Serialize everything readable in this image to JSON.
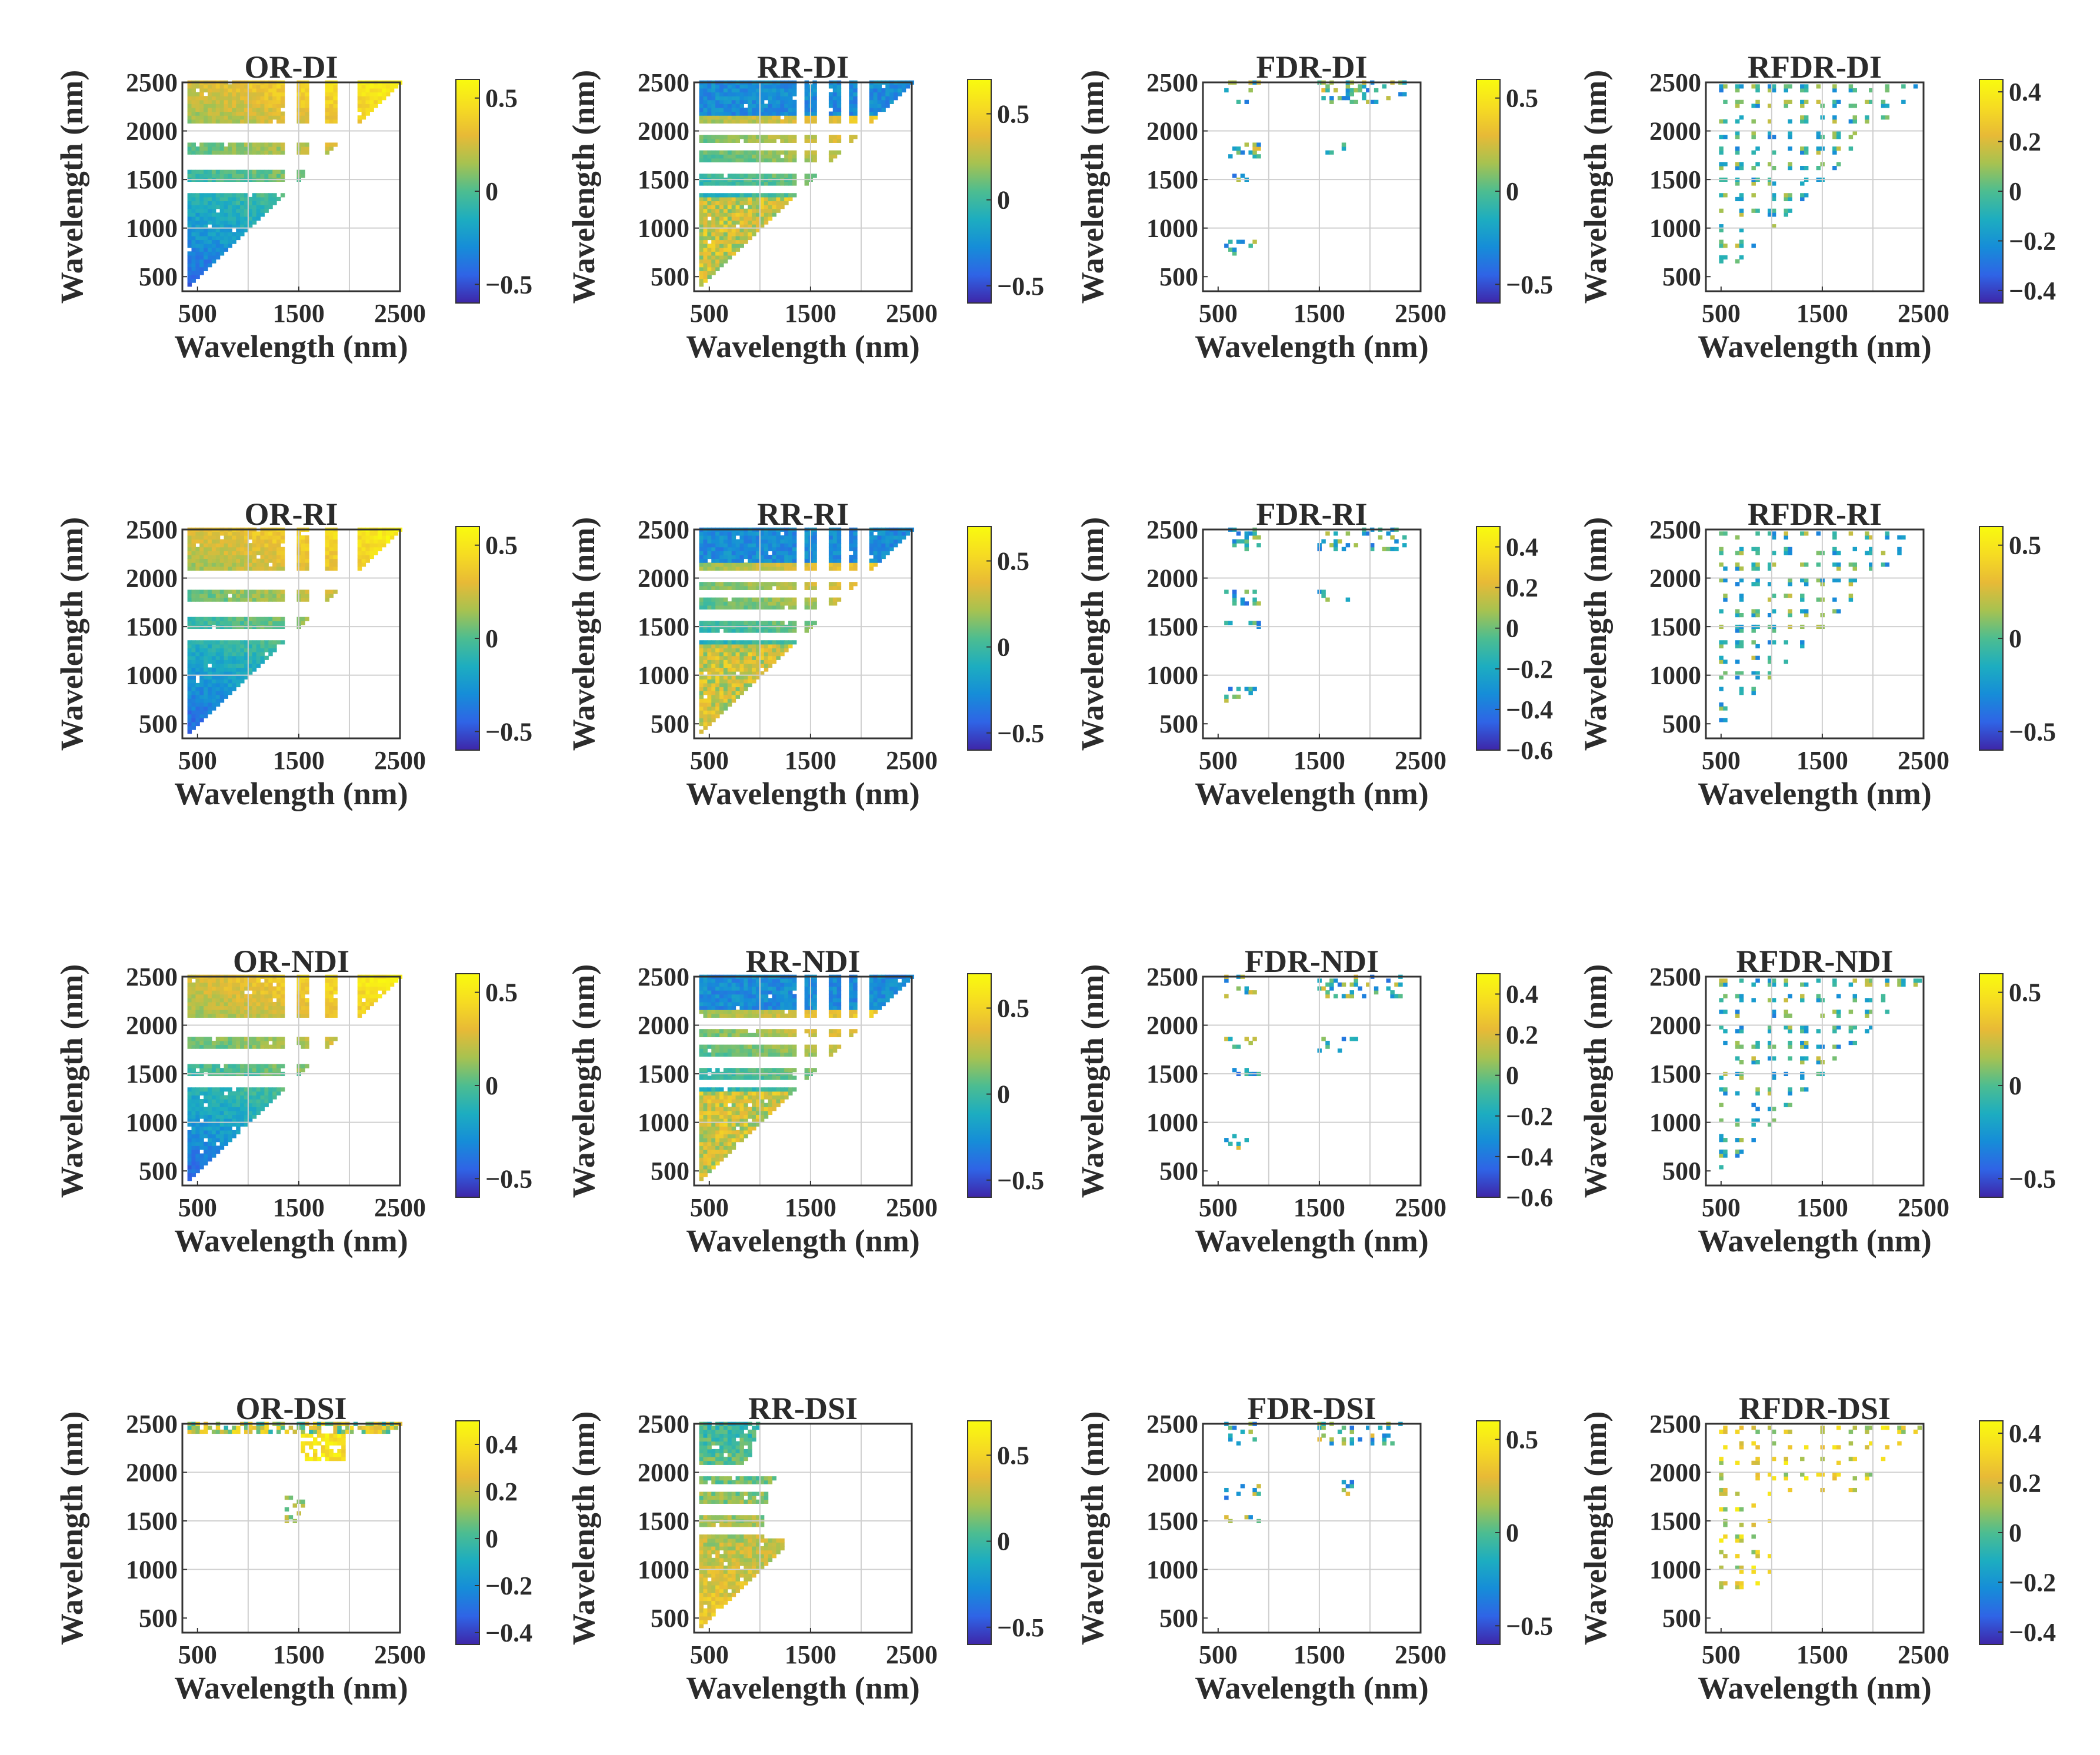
{
  "figure": {
    "colormap": [
      "#3e26a8",
      "#2f64e6",
      "#168dd8",
      "#1dadc0",
      "#4dbd90",
      "#a7c250",
      "#e8ba36",
      "#f6dc22",
      "#f9fb0e"
    ],
    "panel_background": "#ffffff",
    "grid": true
  },
  "chart_data": [
    {
      "type": "heatmap",
      "title": "OR-DI",
      "xlabel": "Wavelength (nm)",
      "ylabel": "Wavelength (nm)",
      "xlim": [
        350,
        2500
      ],
      "ylim": [
        350,
        2500
      ],
      "xticks": [
        "500",
        "1500",
        "2500"
      ],
      "yticks": [
        "500",
        "1000",
        "1500",
        "2000",
        "2500"
      ],
      "colorbar": {
        "ticks": [
          "0.5",
          "0",
          "−0.5"
        ],
        "range": [
          -0.6,
          0.6
        ]
      },
      "pattern": "dense",
      "gaps": [
        [
          1330,
          1460
        ],
        [
          1580,
          1730
        ],
        [
          1860,
          2050
        ]
      ],
      "xgaps": [
        [
          1330,
          1460
        ],
        [
          1580,
          1730
        ],
        [
          1860,
          2050
        ]
      ],
      "value_range": [
        -0.6,
        0.6
      ],
      "density": 0.98,
      "mean": 0.05
    },
    {
      "type": "heatmap",
      "title": "RR-DI",
      "xlabel": "Wavelength (nm)",
      "ylabel": "Wavelength (nm)",
      "xlim": [
        350,
        2500
      ],
      "ylim": [
        350,
        2500
      ],
      "xticks": [
        "500",
        "1500",
        "2500"
      ],
      "yticks": [
        "500",
        "1000",
        "1500",
        "2000",
        "2500"
      ],
      "colorbar": {
        "ticks": [
          "0.5",
          "0",
          "−0.5"
        ],
        "range": [
          -0.6,
          0.7
        ]
      },
      "pattern": "dense",
      "gaps": [
        [
          1330,
          1420
        ],
        [
          1560,
          1640
        ],
        [
          1780,
          1860
        ],
        [
          1960,
          2060
        ]
      ],
      "xgaps": [
        [
          1330,
          1420
        ],
        [
          1560,
          1640
        ],
        [
          1780,
          1860
        ],
        [
          1960,
          2060
        ]
      ],
      "value_range": [
        -0.6,
        0.7
      ],
      "density": 0.98,
      "mean": 0.05
    },
    {
      "type": "heatmap",
      "title": "FDR-DI",
      "xlabel": "Wavelength (nm)",
      "ylabel": "Wavelength (nm)",
      "xlim": [
        350,
        2500
      ],
      "ylim": [
        350,
        2500
      ],
      "xticks": [
        "500",
        "1500",
        "2500"
      ],
      "yticks": [
        "500",
        "1000",
        "1500",
        "2000",
        "2500"
      ],
      "colorbar": {
        "ticks": [
          "0.5",
          "0",
          "−0.5"
        ],
        "range": [
          -0.6,
          0.6
        ]
      },
      "pattern": "sparse",
      "gaps": [],
      "xgaps": [],
      "value_range": [
        -0.6,
        0.6
      ],
      "density": 0.25,
      "mean": 0.0
    },
    {
      "type": "heatmap",
      "title": "RFDR-DI",
      "xlabel": "Wavelength (nm)",
      "ylabel": "Wavelength (nm)",
      "xlim": [
        350,
        2500
      ],
      "ylim": [
        350,
        2500
      ],
      "xticks": [
        "500",
        "1500",
        "2500"
      ],
      "yticks": [
        "500",
        "1000",
        "1500",
        "2000",
        "2500"
      ],
      "colorbar": {
        "ticks": [
          "0.4",
          "0.2",
          "0",
          "−0.2",
          "−0.4"
        ],
        "range": [
          -0.45,
          0.45
        ]
      },
      "pattern": "grid",
      "gaps": [],
      "xgaps": [],
      "value_range": [
        -0.45,
        0.45
      ],
      "density": 0.55,
      "mean": 0.0
    },
    {
      "type": "heatmap",
      "title": "OR-RI",
      "xlabel": "Wavelength (nm)",
      "ylabel": "Wavelength (nm)",
      "xlim": [
        350,
        2500
      ],
      "ylim": [
        350,
        2500
      ],
      "xticks": [
        "500",
        "1500",
        "2500"
      ],
      "yticks": [
        "500",
        "1000",
        "1500",
        "2000",
        "2500"
      ],
      "colorbar": {
        "ticks": [
          "0.5",
          "0",
          "−0.5"
        ],
        "range": [
          -0.6,
          0.6
        ]
      },
      "pattern": "dense",
      "gaps": [
        [
          1330,
          1460
        ],
        [
          1580,
          1730
        ],
        [
          1860,
          2050
        ]
      ],
      "xgaps": [
        [
          1330,
          1460
        ],
        [
          1580,
          1730
        ],
        [
          1860,
          2050
        ]
      ],
      "value_range": [
        -0.6,
        0.6
      ],
      "density": 0.98,
      "mean": 0.0
    },
    {
      "type": "heatmap",
      "title": "RR-RI",
      "xlabel": "Wavelength (nm)",
      "ylabel": "Wavelength (nm)",
      "xlim": [
        350,
        2500
      ],
      "ylim": [
        350,
        2500
      ],
      "xticks": [
        "500",
        "1500",
        "2500"
      ],
      "yticks": [
        "500",
        "1000",
        "1500",
        "2000",
        "2500"
      ],
      "colorbar": {
        "ticks": [
          "0.5",
          "0",
          "−0.5"
        ],
        "range": [
          -0.6,
          0.7
        ]
      },
      "pattern": "dense",
      "gaps": [
        [
          1330,
          1420
        ],
        [
          1560,
          1640
        ],
        [
          1780,
          1860
        ],
        [
          1960,
          2060
        ]
      ],
      "xgaps": [
        [
          1330,
          1420
        ],
        [
          1560,
          1640
        ],
        [
          1780,
          1860
        ],
        [
          1960,
          2060
        ]
      ],
      "value_range": [
        -0.6,
        0.7
      ],
      "density": 0.98,
      "mean": 0.1
    },
    {
      "type": "heatmap",
      "title": "FDR-RI",
      "xlabel": "Wavelength (nm)",
      "ylabel": "Wavelength (nm)",
      "xlim": [
        350,
        2500
      ],
      "ylim": [
        350,
        2500
      ],
      "xticks": [
        "500",
        "1500",
        "2500"
      ],
      "yticks": [
        "500",
        "1000",
        "1500",
        "2000",
        "2500"
      ],
      "colorbar": {
        "ticks": [
          "0.4",
          "0.2",
          "0",
          "−0.2",
          "−0.4",
          "−0.6"
        ],
        "range": [
          -0.6,
          0.5
        ]
      },
      "pattern": "sparse",
      "gaps": [],
      "xgaps": [],
      "value_range": [
        -0.6,
        0.5
      ],
      "density": 0.25,
      "mean": 0.0
    },
    {
      "type": "heatmap",
      "title": "RFDR-RI",
      "xlabel": "Wavelength (nm)",
      "ylabel": "Wavelength (nm)",
      "xlim": [
        350,
        2500
      ],
      "ylim": [
        350,
        2500
      ],
      "xticks": [
        "500",
        "1500",
        "2500"
      ],
      "yticks": [
        "500",
        "1000",
        "1500",
        "2000",
        "2500"
      ],
      "colorbar": {
        "ticks": [
          "0.5",
          "0",
          "−0.5"
        ],
        "range": [
          -0.6,
          0.6
        ]
      },
      "pattern": "grid",
      "gaps": [],
      "xgaps": [],
      "value_range": [
        -0.6,
        0.6
      ],
      "density": 0.55,
      "mean": 0.0
    },
    {
      "type": "heatmap",
      "title": "OR-NDI",
      "xlabel": "Wavelength (nm)",
      "ylabel": "Wavelength (nm)",
      "xlim": [
        350,
        2500
      ],
      "ylim": [
        350,
        2500
      ],
      "xticks": [
        "500",
        "1500",
        "2500"
      ],
      "yticks": [
        "500",
        "1000",
        "1500",
        "2000",
        "2500"
      ],
      "colorbar": {
        "ticks": [
          "0.5",
          "0",
          "−0.5"
        ],
        "range": [
          -0.6,
          0.6
        ]
      },
      "pattern": "dense",
      "gaps": [
        [
          1330,
          1460
        ],
        [
          1580,
          1730
        ],
        [
          1860,
          2050
        ]
      ],
      "xgaps": [
        [
          1330,
          1460
        ],
        [
          1580,
          1730
        ],
        [
          1860,
          2050
        ]
      ],
      "value_range": [
        -0.6,
        0.6
      ],
      "density": 0.98,
      "mean": 0.0
    },
    {
      "type": "heatmap",
      "title": "RR-NDI",
      "xlabel": "Wavelength (nm)",
      "ylabel": "Wavelength (nm)",
      "xlim": [
        350,
        2500
      ],
      "ylim": [
        350,
        2500
      ],
      "xticks": [
        "500",
        "1500",
        "2500"
      ],
      "yticks": [
        "500",
        "1000",
        "1500",
        "2000",
        "2500"
      ],
      "colorbar": {
        "ticks": [
          "0.5",
          "0",
          "−0.5"
        ],
        "range": [
          -0.6,
          0.7
        ]
      },
      "pattern": "dense",
      "gaps": [
        [
          1330,
          1420
        ],
        [
          1560,
          1640
        ],
        [
          1780,
          1860
        ],
        [
          1960,
          2060
        ]
      ],
      "xgaps": [
        [
          1330,
          1420
        ],
        [
          1560,
          1640
        ],
        [
          1780,
          1860
        ],
        [
          1960,
          2060
        ]
      ],
      "value_range": [
        -0.6,
        0.7
      ],
      "density": 0.98,
      "mean": 0.1
    },
    {
      "type": "heatmap",
      "title": "FDR-NDI",
      "xlabel": "Wavelength (nm)",
      "ylabel": "Wavelength (nm)",
      "xlim": [
        350,
        2500
      ],
      "ylim": [
        350,
        2500
      ],
      "xticks": [
        "500",
        "1500",
        "2500"
      ],
      "yticks": [
        "500",
        "1000",
        "1500",
        "2000",
        "2500"
      ],
      "colorbar": {
        "ticks": [
          "0.4",
          "0.2",
          "0",
          "−0.2",
          "−0.4",
          "−0.6"
        ],
        "range": [
          -0.6,
          0.5
        ]
      },
      "pattern": "sparse",
      "gaps": [],
      "xgaps": [],
      "value_range": [
        -0.6,
        0.5
      ],
      "density": 0.25,
      "mean": 0.0
    },
    {
      "type": "heatmap",
      "title": "RFDR-NDI",
      "xlabel": "Wavelength (nm)",
      "ylabel": "Wavelength (nm)",
      "xlim": [
        350,
        2500
      ],
      "ylim": [
        350,
        2500
      ],
      "xticks": [
        "500",
        "1500",
        "2500"
      ],
      "yticks": [
        "500",
        "1000",
        "1500",
        "2000",
        "2500"
      ],
      "colorbar": {
        "ticks": [
          "0.5",
          "0",
          "−0.5"
        ],
        "range": [
          -0.6,
          0.6
        ]
      },
      "pattern": "grid",
      "gaps": [],
      "xgaps": [],
      "value_range": [
        -0.6,
        0.6
      ],
      "density": 0.55,
      "mean": 0.0
    },
    {
      "type": "heatmap",
      "title": "OR-DSI",
      "xlabel": "Wavelength (nm)",
      "ylabel": "Wavelength (nm)",
      "xlim": [
        350,
        2500
      ],
      "ylim": [
        350,
        2500
      ],
      "xticks": [
        "500",
        "1500",
        "2500"
      ],
      "yticks": [
        "500",
        "1000",
        "1500",
        "2000",
        "2500"
      ],
      "colorbar": {
        "ticks": [
          "0.4",
          "0.2",
          "0",
          "−0.2",
          "−0.4"
        ],
        "range": [
          -0.45,
          0.5
        ]
      },
      "pattern": "or-dsi",
      "gaps": [],
      "xgaps": [],
      "value_range": [
        -0.45,
        0.5
      ],
      "density": 0.9,
      "mean": 0.05
    },
    {
      "type": "heatmap",
      "title": "RR-DSI",
      "xlabel": "Wavelength (nm)",
      "ylabel": "Wavelength (nm)",
      "xlim": [
        350,
        2500
      ],
      "ylim": [
        350,
        2500
      ],
      "xticks": [
        "500",
        "1500",
        "2500"
      ],
      "yticks": [
        "500",
        "1000",
        "1500",
        "2000",
        "2500"
      ],
      "colorbar": {
        "ticks": [
          "0.5",
          "0",
          "−0.5"
        ],
        "range": [
          -0.6,
          0.7
        ]
      },
      "pattern": "rr-dsi",
      "gaps": [
        [
          1330,
          1420
        ],
        [
          1560,
          1640
        ],
        [
          1780,
          1860
        ],
        [
          1960,
          2060
        ]
      ],
      "xgaps": [],
      "value_range": [
        -0.6,
        0.7
      ],
      "density": 0.98,
      "mean": 0.1
    },
    {
      "type": "heatmap",
      "title": "FDR-DSI",
      "xlabel": "Wavelength (nm)",
      "ylabel": "Wavelength (nm)",
      "xlim": [
        350,
        2500
      ],
      "ylim": [
        350,
        2500
      ],
      "xticks": [
        "500",
        "1500",
        "2500"
      ],
      "yticks": [
        "500",
        "1000",
        "1500",
        "2000",
        "2500"
      ],
      "colorbar": {
        "ticks": [
          "0.5",
          "0",
          "−0.5"
        ],
        "range": [
          -0.6,
          0.6
        ]
      },
      "pattern": "fdr-dsi",
      "gaps": [],
      "xgaps": [],
      "value_range": [
        -0.6,
        0.6
      ],
      "density": 0.25,
      "mean": 0.0
    },
    {
      "type": "heatmap",
      "title": "RFDR-DSI",
      "xlabel": "Wavelength (nm)",
      "ylabel": "Wavelength (nm)",
      "xlim": [
        350,
        2500
      ],
      "ylim": [
        350,
        2500
      ],
      "xticks": [
        "500",
        "1500",
        "2500"
      ],
      "yticks": [
        "500",
        "1000",
        "1500",
        "2000",
        "2500"
      ],
      "colorbar": {
        "ticks": [
          "0.4",
          "0.2",
          "0",
          "−0.2",
          "−0.4"
        ],
        "range": [
          -0.45,
          0.45
        ]
      },
      "pattern": "rfdr-dsi",
      "gaps": [],
      "xgaps": [],
      "value_range": [
        -0.45,
        0.45
      ],
      "density": 0.4,
      "mean": 0.25
    }
  ]
}
